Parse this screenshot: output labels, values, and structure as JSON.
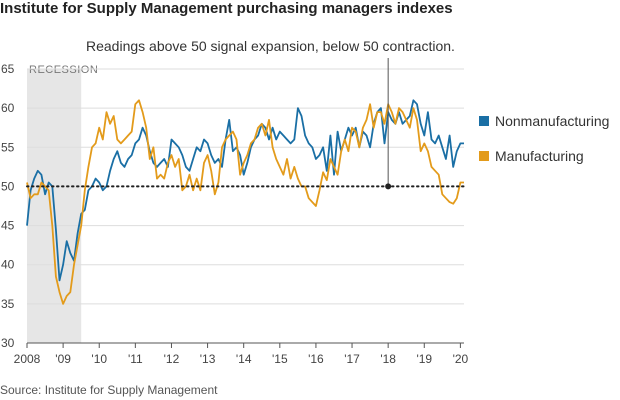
{
  "title": "Institute for Supply Management purchasing managers indexes",
  "note": "Readings above 50 signal expansion, below 50 contraction.",
  "source": "Source: Institute for Supply Management",
  "colors": {
    "nonmanufacturing": "#1a6fa5",
    "manufacturing": "#e39b1b",
    "recession": "#e6e6e6",
    "grid": "#dddddd"
  },
  "chart_data": {
    "type": "line",
    "title": "Institute for Supply Management purchasing managers indexes",
    "xlabel": "",
    "ylabel": "",
    "xlim": [
      2008.0,
      2020.1
    ],
    "ylim": [
      30,
      65
    ],
    "grid": true,
    "legend_position": "right",
    "y_ticks": [
      30,
      35,
      40,
      45,
      50,
      55,
      60,
      65
    ],
    "x_ticks": [
      {
        "value": 2008,
        "label": "2008"
      },
      {
        "value": 2009,
        "label": "'09"
      },
      {
        "value": 2010,
        "label": "'10"
      },
      {
        "value": 2011,
        "label": "'11"
      },
      {
        "value": 2012,
        "label": "'12"
      },
      {
        "value": 2013,
        "label": "'13"
      },
      {
        "value": 2014,
        "label": "'14"
      },
      {
        "value": 2015,
        "label": "'15"
      },
      {
        "value": 2016,
        "label": "'16"
      },
      {
        "value": 2017,
        "label": "'17"
      },
      {
        "value": 2018,
        "label": "'18"
      },
      {
        "value": 2019,
        "label": "'19"
      },
      {
        "value": 2020,
        "label": "'20"
      }
    ],
    "recession": {
      "label": "RECESSION",
      "start": 2008.0,
      "end": 2009.5
    },
    "reference_line": 50,
    "annotation_x": 2018.0,
    "series": [
      {
        "name": "Nonmanufacturing",
        "color_key": "nonmanufacturing",
        "points": [
          [
            2008.0,
            45.0
          ],
          [
            2008.1,
            49.5
          ],
          [
            2008.2,
            51.0
          ],
          [
            2008.3,
            52.0
          ],
          [
            2008.4,
            51.5
          ],
          [
            2008.5,
            49.0
          ],
          [
            2008.6,
            50.5
          ],
          [
            2008.7,
            50.0
          ],
          [
            2008.8,
            44.5
          ],
          [
            2008.9,
            38.0
          ],
          [
            2009.0,
            40.0
          ],
          [
            2009.1,
            43.0
          ],
          [
            2009.2,
            41.5
          ],
          [
            2009.3,
            40.5
          ],
          [
            2009.4,
            44.0
          ],
          [
            2009.5,
            46.5
          ],
          [
            2009.6,
            47.0
          ],
          [
            2009.7,
            49.5
          ],
          [
            2009.8,
            50.0
          ],
          [
            2009.9,
            51.0
          ],
          [
            2010.0,
            50.5
          ],
          [
            2010.1,
            49.5
          ],
          [
            2010.2,
            50.0
          ],
          [
            2010.3,
            52.0
          ],
          [
            2010.4,
            53.5
          ],
          [
            2010.5,
            54.5
          ],
          [
            2010.6,
            53.0
          ],
          [
            2010.7,
            52.5
          ],
          [
            2010.8,
            53.5
          ],
          [
            2010.9,
            54.0
          ],
          [
            2011.0,
            55.5
          ],
          [
            2011.1,
            56.0
          ],
          [
            2011.2,
            57.5
          ],
          [
            2011.3,
            56.5
          ],
          [
            2011.4,
            54.5
          ],
          [
            2011.5,
            53.0
          ],
          [
            2011.6,
            52.5
          ],
          [
            2011.7,
            53.0
          ],
          [
            2011.8,
            53.5
          ],
          [
            2011.9,
            52.5
          ],
          [
            2012.0,
            56.0
          ],
          [
            2012.1,
            55.5
          ],
          [
            2012.2,
            55.0
          ],
          [
            2012.3,
            54.0
          ],
          [
            2012.4,
            52.5
          ],
          [
            2012.5,
            52.0
          ],
          [
            2012.6,
            53.5
          ],
          [
            2012.7,
            55.0
          ],
          [
            2012.8,
            54.5
          ],
          [
            2012.9,
            56.0
          ],
          [
            2013.0,
            55.5
          ],
          [
            2013.1,
            54.0
          ],
          [
            2013.2,
            53.0
          ],
          [
            2013.3,
            53.5
          ],
          [
            2013.4,
            52.5
          ],
          [
            2013.5,
            56.0
          ],
          [
            2013.6,
            58.5
          ],
          [
            2013.7,
            54.5
          ],
          [
            2013.8,
            55.0
          ],
          [
            2013.9,
            54.0
          ],
          [
            2014.0,
            51.5
          ],
          [
            2014.1,
            53.0
          ],
          [
            2014.2,
            55.0
          ],
          [
            2014.3,
            56.0
          ],
          [
            2014.4,
            56.5
          ],
          [
            2014.5,
            58.0
          ],
          [
            2014.6,
            57.5
          ],
          [
            2014.7,
            56.0
          ],
          [
            2014.8,
            57.5
          ],
          [
            2014.9,
            56.0
          ],
          [
            2015.0,
            57.0
          ],
          [
            2015.1,
            56.5
          ],
          [
            2015.2,
            56.0
          ],
          [
            2015.3,
            55.5
          ],
          [
            2015.4,
            56.0
          ],
          [
            2015.5,
            60.0
          ],
          [
            2015.6,
            59.0
          ],
          [
            2015.7,
            56.5
          ],
          [
            2015.8,
            55.5
          ],
          [
            2015.9,
            55.0
          ],
          [
            2016.0,
            53.5
          ],
          [
            2016.1,
            54.0
          ],
          [
            2016.2,
            55.0
          ],
          [
            2016.3,
            52.0
          ],
          [
            2016.4,
            56.5
          ],
          [
            2016.5,
            51.5
          ],
          [
            2016.6,
            57.0
          ],
          [
            2016.7,
            54.5
          ],
          [
            2016.8,
            56.0
          ],
          [
            2016.9,
            57.5
          ],
          [
            2017.0,
            56.5
          ],
          [
            2017.1,
            57.5
          ],
          [
            2017.2,
            55.0
          ],
          [
            2017.3,
            57.0
          ],
          [
            2017.4,
            56.5
          ],
          [
            2017.5,
            55.0
          ],
          [
            2017.6,
            58.0
          ],
          [
            2017.7,
            59.5
          ],
          [
            2017.8,
            60.0
          ],
          [
            2017.9,
            55.5
          ],
          [
            2018.0,
            59.5
          ],
          [
            2018.1,
            58.5
          ],
          [
            2018.2,
            58.0
          ],
          [
            2018.3,
            59.5
          ],
          [
            2018.4,
            58.0
          ],
          [
            2018.5,
            58.5
          ],
          [
            2018.6,
            59.0
          ],
          [
            2018.7,
            61.0
          ],
          [
            2018.8,
            60.5
          ],
          [
            2018.9,
            58.0
          ],
          [
            2019.0,
            56.5
          ],
          [
            2019.1,
            59.5
          ],
          [
            2019.2,
            56.0
          ],
          [
            2019.3,
            55.5
          ],
          [
            2019.4,
            56.5
          ],
          [
            2019.5,
            55.0
          ],
          [
            2019.6,
            53.5
          ],
          [
            2019.7,
            56.5
          ],
          [
            2019.8,
            52.5
          ],
          [
            2019.9,
            54.5
          ],
          [
            2020.0,
            55.5
          ],
          [
            2020.1,
            55.5
          ]
        ]
      },
      {
        "name": "Manufacturing",
        "color_key": "manufacturing",
        "points": [
          [
            2008.0,
            50.5
          ],
          [
            2008.1,
            48.5
          ],
          [
            2008.2,
            49.0
          ],
          [
            2008.3,
            49.0
          ],
          [
            2008.4,
            50.5
          ],
          [
            2008.5,
            50.0
          ],
          [
            2008.6,
            49.5
          ],
          [
            2008.7,
            45.0
          ],
          [
            2008.8,
            38.5
          ],
          [
            2008.9,
            36.5
          ],
          [
            2009.0,
            35.0
          ],
          [
            2009.1,
            36.0
          ],
          [
            2009.2,
            36.5
          ],
          [
            2009.3,
            40.0
          ],
          [
            2009.4,
            42.5
          ],
          [
            2009.5,
            45.0
          ],
          [
            2009.6,
            49.5
          ],
          [
            2009.7,
            52.5
          ],
          [
            2009.8,
            55.0
          ],
          [
            2009.9,
            55.5
          ],
          [
            2010.0,
            57.5
          ],
          [
            2010.1,
            56.0
          ],
          [
            2010.2,
            59.5
          ],
          [
            2010.3,
            58.0
          ],
          [
            2010.4,
            59.0
          ],
          [
            2010.5,
            56.0
          ],
          [
            2010.6,
            55.5
          ],
          [
            2010.7,
            56.0
          ],
          [
            2010.8,
            56.5
          ],
          [
            2010.9,
            57.0
          ],
          [
            2011.0,
            60.5
          ],
          [
            2011.1,
            61.0
          ],
          [
            2011.2,
            59.5
          ],
          [
            2011.3,
            57.5
          ],
          [
            2011.4,
            53.5
          ],
          [
            2011.5,
            55.0
          ],
          [
            2011.6,
            51.0
          ],
          [
            2011.7,
            51.5
          ],
          [
            2011.8,
            51.0
          ],
          [
            2011.9,
            53.0
          ],
          [
            2012.0,
            54.0
          ],
          [
            2012.1,
            52.5
          ],
          [
            2012.2,
            53.5
          ],
          [
            2012.3,
            49.5
          ],
          [
            2012.4,
            50.0
          ],
          [
            2012.5,
            51.5
          ],
          [
            2012.6,
            49.5
          ],
          [
            2012.7,
            51.0
          ],
          [
            2012.8,
            49.5
          ],
          [
            2012.9,
            53.0
          ],
          [
            2013.0,
            54.0
          ],
          [
            2013.1,
            52.0
          ],
          [
            2013.2,
            49.0
          ],
          [
            2013.3,
            50.5
          ],
          [
            2013.4,
            55.0
          ],
          [
            2013.5,
            56.0
          ],
          [
            2013.6,
            56.5
          ],
          [
            2013.7,
            57.0
          ],
          [
            2013.8,
            56.0
          ],
          [
            2013.9,
            51.5
          ],
          [
            2014.0,
            53.0
          ],
          [
            2014.1,
            54.0
          ],
          [
            2014.2,
            55.5
          ],
          [
            2014.3,
            56.0
          ],
          [
            2014.4,
            57.5
          ],
          [
            2014.5,
            58.0
          ],
          [
            2014.6,
            56.5
          ],
          [
            2014.7,
            58.5
          ],
          [
            2014.8,
            55.0
          ],
          [
            2014.9,
            53.5
          ],
          [
            2015.0,
            52.5
          ],
          [
            2015.1,
            51.5
          ],
          [
            2015.2,
            53.5
          ],
          [
            2015.3,
            51.0
          ],
          [
            2015.4,
            52.5
          ],
          [
            2015.5,
            51.0
          ],
          [
            2015.6,
            50.0
          ],
          [
            2015.7,
            50.0
          ],
          [
            2015.8,
            48.5
          ],
          [
            2015.9,
            48.0
          ],
          [
            2016.0,
            47.5
          ],
          [
            2016.1,
            49.5
          ],
          [
            2016.2,
            51.8
          ],
          [
            2016.3,
            50.8
          ],
          [
            2016.4,
            53.5
          ],
          [
            2016.5,
            52.5
          ],
          [
            2016.6,
            51.5
          ],
          [
            2016.7,
            54.5
          ],
          [
            2016.8,
            56.0
          ],
          [
            2016.9,
            54.5
          ],
          [
            2017.0,
            57.5
          ],
          [
            2017.1,
            57.0
          ],
          [
            2017.2,
            55.0
          ],
          [
            2017.3,
            57.5
          ],
          [
            2017.4,
            58.5
          ],
          [
            2017.5,
            60.5
          ],
          [
            2017.6,
            57.5
          ],
          [
            2017.7,
            59.5
          ],
          [
            2017.8,
            59.5
          ],
          [
            2017.9,
            58.0
          ],
          [
            2018.0,
            60.5
          ],
          [
            2018.1,
            59.5
          ],
          [
            2018.2,
            58.0
          ],
          [
            2018.3,
            60.0
          ],
          [
            2018.4,
            59.5
          ],
          [
            2018.5,
            58.5
          ],
          [
            2018.6,
            57.5
          ],
          [
            2018.7,
            60.0
          ],
          [
            2018.8,
            58.5
          ],
          [
            2018.9,
            54.5
          ],
          [
            2019.0,
            55.5
          ],
          [
            2019.1,
            54.5
          ],
          [
            2019.2,
            52.5
          ],
          [
            2019.3,
            52.0
          ],
          [
            2019.4,
            51.5
          ],
          [
            2019.5,
            49.0
          ],
          [
            2019.6,
            48.5
          ],
          [
            2019.7,
            48.0
          ],
          [
            2019.8,
            47.8
          ],
          [
            2019.9,
            48.5
          ],
          [
            2020.0,
            50.5
          ],
          [
            2020.1,
            50.5
          ]
        ]
      }
    ]
  }
}
